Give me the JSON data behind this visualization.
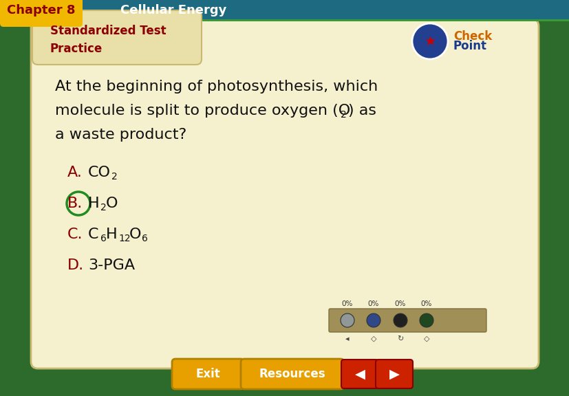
{
  "bg_outer": "#2d6b2d",
  "bg_header_yellow": "#f0b800",
  "bg_header_teal": "#1e6a80",
  "header_chapter_text": "Chapter 8",
  "header_chapter_color": "#8b0000",
  "header_subject_text": "Cellular Energy",
  "header_subject_color": "#ffffff",
  "card_bg": "#f5f0ce",
  "card_tab_bg": "#e8e0a8",
  "section_title_color": "#8b0000",
  "question_color": "#111111",
  "answer_color": "#8b0000",
  "answer_text_color": "#111111",
  "circle_color": "#228B22",
  "exit_bg": "#e8a000",
  "exit_text": "Exit",
  "resources_bg": "#e8a000",
  "resources_text": "Resources",
  "arrow_color": "#cc2200",
  "pct_labels": [
    "0%",
    "0%",
    "0%",
    "0%"
  ],
  "pct_color": "#333333",
  "dot_colors": [
    "#909898",
    "#304888",
    "#202020",
    "#204820"
  ],
  "teal_line_color": "#3a9a3a",
  "card_border_color": "#c8b870"
}
